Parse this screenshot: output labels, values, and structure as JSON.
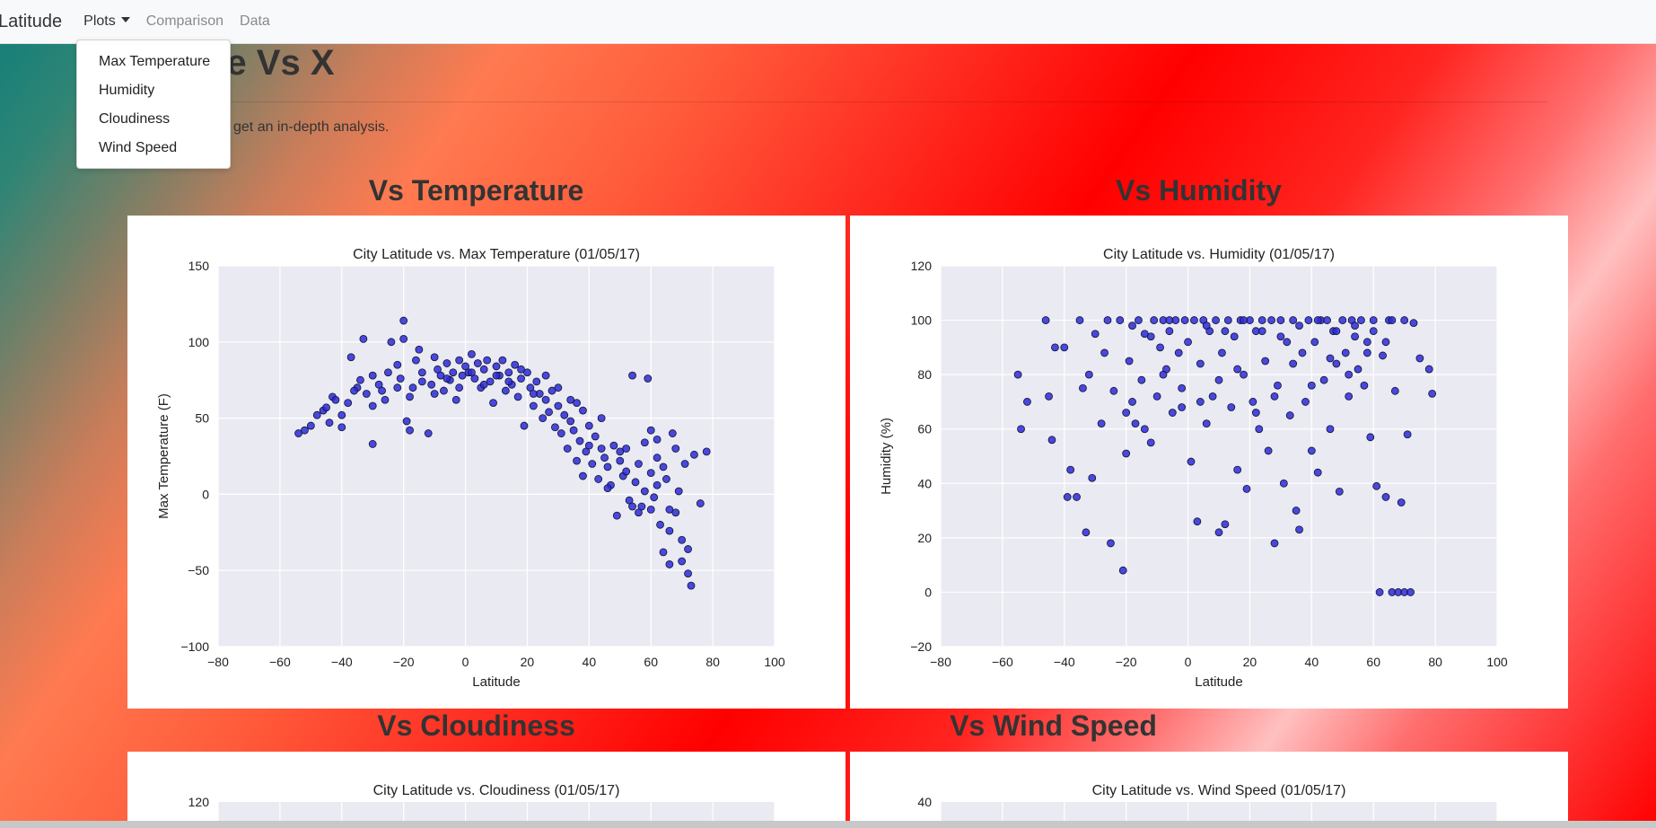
{
  "navbar": {
    "brand": "Latitude",
    "plots_label": "Plots",
    "comparison_label": "Comparison",
    "data_label": "Data"
  },
  "dropdown": {
    "items": [
      "Max Temperature",
      "Humidity",
      "Cloudiness",
      "Wind Speed"
    ]
  },
  "page": {
    "title": "de Vs X",
    "lead": "get an in-depth analysis."
  },
  "sections": [
    {
      "title": "Vs Temperature"
    },
    {
      "title": "Vs Humidity"
    },
    {
      "title": "Vs Cloudiness"
    },
    {
      "title": "Vs Wind Speed"
    }
  ],
  "colors": {
    "point_fill": "#2b2bd8",
    "point_stroke": "#111133",
    "plot_bg": "#eaeaf2",
    "grid": "#ffffff"
  },
  "chart_data": [
    {
      "type": "scatter",
      "title": "City Latitude vs. Max Temperature (01/05/17)",
      "xlabel": "Latitude",
      "ylabel": "Max Temperature (F)",
      "xlim": [
        -80,
        100
      ],
      "ylim": [
        -100,
        150
      ],
      "xticks": [
        -80,
        -60,
        -40,
        -20,
        0,
        20,
        40,
        60,
        80,
        100
      ],
      "yticks": [
        -100,
        -50,
        0,
        50,
        100,
        150
      ],
      "grid": true,
      "points": [
        [
          -54,
          40
        ],
        [
          -52,
          42
        ],
        [
          -50,
          45
        ],
        [
          -46,
          55
        ],
        [
          -45,
          57
        ],
        [
          -44,
          47
        ],
        [
          -43,
          64
        ],
        [
          -40,
          44
        ],
        [
          -38,
          60
        ],
        [
          -37,
          90
        ],
        [
          -35,
          70
        ],
        [
          -34,
          75
        ],
        [
          -33,
          102
        ],
        [
          -32,
          66
        ],
        [
          -30,
          33
        ],
        [
          -30,
          78
        ],
        [
          -28,
          72
        ],
        [
          -27,
          68
        ],
        [
          -25,
          80
        ],
        [
          -24,
          100
        ],
        [
          -22,
          85
        ],
        [
          -21,
          76
        ],
        [
          -20,
          114
        ],
        [
          -20,
          102
        ],
        [
          -19,
          48
        ],
        [
          -18,
          42
        ],
        [
          -17,
          70
        ],
        [
          -16,
          88
        ],
        [
          -15,
          95
        ],
        [
          -14,
          80
        ],
        [
          -12,
          40
        ],
        [
          -11,
          72
        ],
        [
          -10,
          90
        ],
        [
          -9,
          82
        ],
        [
          -8,
          78
        ],
        [
          -7,
          68
        ],
        [
          -6,
          86
        ],
        [
          -5,
          75
        ],
        [
          -4,
          80
        ],
        [
          -3,
          62
        ],
        [
          -2,
          88
        ],
        [
          -1,
          78
        ],
        [
          0,
          84
        ],
        [
          1,
          80
        ],
        [
          2,
          92
        ],
        [
          3,
          76
        ],
        [
          4,
          86
        ],
        [
          5,
          70
        ],
        [
          6,
          82
        ],
        [
          7,
          88
        ],
        [
          8,
          74
        ],
        [
          9,
          60
        ],
        [
          10,
          84
        ],
        [
          11,
          78
        ],
        [
          12,
          88
        ],
        [
          13,
          68
        ],
        [
          14,
          80
        ],
        [
          15,
          72
        ],
        [
          16,
          85
        ],
        [
          17,
          64
        ],
        [
          18,
          76
        ],
        [
          19,
          45
        ],
        [
          20,
          80
        ],
        [
          21,
          70
        ],
        [
          22,
          58
        ],
        [
          23,
          74
        ],
        [
          24,
          66
        ],
        [
          25,
          50
        ],
        [
          26,
          62
        ],
        [
          27,
          54
        ],
        [
          28,
          68
        ],
        [
          29,
          44
        ],
        [
          30,
          58
        ],
        [
          31,
          40
        ],
        [
          32,
          52
        ],
        [
          33,
          30
        ],
        [
          34,
          48
        ],
        [
          35,
          42
        ],
        [
          36,
          60
        ],
        [
          37,
          35
        ],
        [
          38,
          55
        ],
        [
          39,
          28
        ],
        [
          40,
          45
        ],
        [
          41,
          20
        ],
        [
          42,
          38
        ],
        [
          43,
          10
        ],
        [
          44,
          30
        ],
        [
          45,
          24
        ],
        [
          46,
          18
        ],
        [
          47,
          6
        ],
        [
          48,
          32
        ],
        [
          49,
          -14
        ],
        [
          50,
          22
        ],
        [
          51,
          12
        ],
        [
          52,
          30
        ],
        [
          53,
          -4
        ],
        [
          54,
          78
        ],
        [
          55,
          8
        ],
        [
          56,
          20
        ],
        [
          57,
          -8
        ],
        [
          58,
          34
        ],
        [
          59,
          76
        ],
        [
          60,
          14
        ],
        [
          61,
          -2
        ],
        [
          62,
          24
        ],
        [
          63,
          -20
        ],
        [
          64,
          -38
        ],
        [
          65,
          10
        ],
        [
          66,
          -46
        ],
        [
          67,
          40
        ],
        [
          68,
          -12
        ],
        [
          69,
          2
        ],
        [
          70,
          -30
        ],
        [
          71,
          20
        ],
        [
          72,
          -52
        ],
        [
          73,
          -60
        ],
        [
          74,
          26
        ],
        [
          76,
          -6
        ],
        [
          78,
          28
        ],
        [
          58,
          2
        ],
        [
          52,
          15
        ],
        [
          44,
          50
        ],
        [
          38,
          12
        ],
        [
          34,
          62
        ],
        [
          30,
          70
        ],
        [
          26,
          78
        ],
        [
          22,
          66
        ],
        [
          18,
          82
        ],
        [
          14,
          74
        ],
        [
          10,
          78
        ],
        [
          6,
          72
        ],
        [
          2,
          80
        ],
        [
          -2,
          70
        ],
        [
          -6,
          76
        ],
        [
          -10,
          66
        ],
        [
          -14,
          74
        ],
        [
          -18,
          64
        ],
        [
          -22,
          70
        ],
        [
          -26,
          62
        ],
        [
          -30,
          58
        ],
        [
          -36,
          68
        ],
        [
          -40,
          52
        ],
        [
          -42,
          62
        ],
        [
          -48,
          52
        ],
        [
          36,
          22
        ],
        [
          40,
          32
        ],
        [
          46,
          4
        ],
        [
          50,
          28
        ],
        [
          54,
          -8
        ],
        [
          56,
          -12
        ],
        [
          60,
          -10
        ],
        [
          62,
          6
        ],
        [
          64,
          18
        ],
        [
          66,
          -24
        ],
        [
          68,
          30
        ],
        [
          70,
          -44
        ],
        [
          72,
          -36
        ],
        [
          66,
          -10
        ],
        [
          60,
          42
        ],
        [
          62,
          36
        ]
      ]
    },
    {
      "type": "scatter",
      "title": "City Latitude vs. Humidity (01/05/17)",
      "xlabel": "Latitude",
      "ylabel": "Humidity (%)",
      "xlim": [
        -80,
        100
      ],
      "ylim": [
        -20,
        120
      ],
      "xticks": [
        -80,
        -60,
        -40,
        -20,
        0,
        20,
        40,
        60,
        80,
        100
      ],
      "yticks": [
        -20,
        0,
        20,
        40,
        60,
        80,
        100,
        120
      ],
      "grid": true,
      "points": [
        [
          -55,
          80
        ],
        [
          -54,
          60
        ],
        [
          -52,
          70
        ],
        [
          -46,
          100
        ],
        [
          -45,
          72
        ],
        [
          -44,
          56
        ],
        [
          -43,
          90
        ],
        [
          -40,
          90
        ],
        [
          -39,
          35
        ],
        [
          -38,
          45
        ],
        [
          -36,
          35
        ],
        [
          -35,
          100
        ],
        [
          -34,
          75
        ],
        [
          -33,
          22
        ],
        [
          -32,
          80
        ],
        [
          -31,
          42
        ],
        [
          -30,
          95
        ],
        [
          -28,
          62
        ],
        [
          -27,
          88
        ],
        [
          -25,
          18
        ],
        [
          -24,
          74
        ],
        [
          -22,
          100
        ],
        [
          -21,
          8
        ],
        [
          -20,
          51
        ],
        [
          -19,
          85
        ],
        [
          -18,
          70
        ],
        [
          -17,
          62
        ],
        [
          -16,
          100
        ],
        [
          -15,
          78
        ],
        [
          -14,
          95
        ],
        [
          -12,
          55
        ],
        [
          -11,
          100
        ],
        [
          -10,
          72
        ],
        [
          -9,
          90
        ],
        [
          -8,
          100
        ],
        [
          -7,
          82
        ],
        [
          -6,
          96
        ],
        [
          -5,
          66
        ],
        [
          -4,
          100
        ],
        [
          -3,
          88
        ],
        [
          -2,
          75
        ],
        [
          -1,
          100
        ],
        [
          0,
          92
        ],
        [
          1,
          48
        ],
        [
          2,
          100
        ],
        [
          3,
          26
        ],
        [
          4,
          84
        ],
        [
          5,
          100
        ],
        [
          6,
          62
        ],
        [
          7,
          96
        ],
        [
          8,
          72
        ],
        [
          9,
          100
        ],
        [
          10,
          22
        ],
        [
          11,
          88
        ],
        [
          12,
          25
        ],
        [
          13,
          100
        ],
        [
          14,
          68
        ],
        [
          15,
          94
        ],
        [
          16,
          45
        ],
        [
          17,
          100
        ],
        [
          18,
          80
        ],
        [
          19,
          38
        ],
        [
          20,
          100
        ],
        [
          21,
          70
        ],
        [
          22,
          96
        ],
        [
          23,
          60
        ],
        [
          24,
          100
        ],
        [
          25,
          85
        ],
        [
          26,
          52
        ],
        [
          27,
          100
        ],
        [
          28,
          18
        ],
        [
          29,
          76
        ],
        [
          30,
          100
        ],
        [
          31,
          40
        ],
        [
          32,
          92
        ],
        [
          33,
          65
        ],
        [
          34,
          100
        ],
        [
          35,
          30
        ],
        [
          36,
          23
        ],
        [
          37,
          88
        ],
        [
          38,
          70
        ],
        [
          39,
          100
        ],
        [
          40,
          52
        ],
        [
          41,
          92
        ],
        [
          42,
          44
        ],
        [
          43,
          100
        ],
        [
          44,
          78
        ],
        [
          45,
          100
        ],
        [
          46,
          60
        ],
        [
          47,
          96
        ],
        [
          48,
          84
        ],
        [
          49,
          37
        ],
        [
          50,
          100
        ],
        [
          51,
          88
        ],
        [
          52,
          72
        ],
        [
          53,
          100
        ],
        [
          54,
          94
        ],
        [
          55,
          82
        ],
        [
          56,
          100
        ],
        [
          57,
          76
        ],
        [
          58,
          92
        ],
        [
          59,
          57
        ],
        [
          60,
          100
        ],
        [
          61,
          39
        ],
        [
          62,
          0
        ],
        [
          63,
          87
        ],
        [
          64,
          35
        ],
        [
          65,
          100
        ],
        [
          66,
          0
        ],
        [
          67,
          74
        ],
        [
          68,
          0
        ],
        [
          69,
          33
        ],
        [
          70,
          0
        ],
        [
          71,
          58
        ],
        [
          72,
          0
        ],
        [
          73,
          99
        ],
        [
          75,
          86
        ],
        [
          78,
          82
        ],
        [
          79,
          73
        ],
        [
          -26,
          100
        ],
        [
          -18,
          98
        ],
        [
          -12,
          94
        ],
        [
          -6,
          100
        ],
        [
          6,
          98
        ],
        [
          12,
          96
        ],
        [
          18,
          100
        ],
        [
          24,
          96
        ],
        [
          30,
          94
        ],
        [
          36,
          98
        ],
        [
          42,
          100
        ],
        [
          48,
          96
        ],
        [
          54,
          98
        ],
        [
          60,
          96
        ],
        [
          66,
          100
        ],
        [
          70,
          100
        ],
        [
          64,
          92
        ],
        [
          58,
          88
        ],
        [
          52,
          80
        ],
        [
          46,
          86
        ],
        [
          40,
          76
        ],
        [
          34,
          84
        ],
        [
          28,
          72
        ],
        [
          22,
          66
        ],
        [
          16,
          82
        ],
        [
          10,
          78
        ],
        [
          4,
          70
        ],
        [
          -2,
          68
        ],
        [
          -8,
          80
        ],
        [
          -14,
          60
        ],
        [
          -20,
          66
        ]
      ]
    },
    {
      "type": "scatter",
      "title": "City Latitude vs. Cloudiness (01/05/17)",
      "yticks": [
        120
      ]
    },
    {
      "type": "scatter",
      "title": "City Latitude vs. Wind Speed (01/05/17)",
      "yticks": [
        40
      ]
    }
  ]
}
